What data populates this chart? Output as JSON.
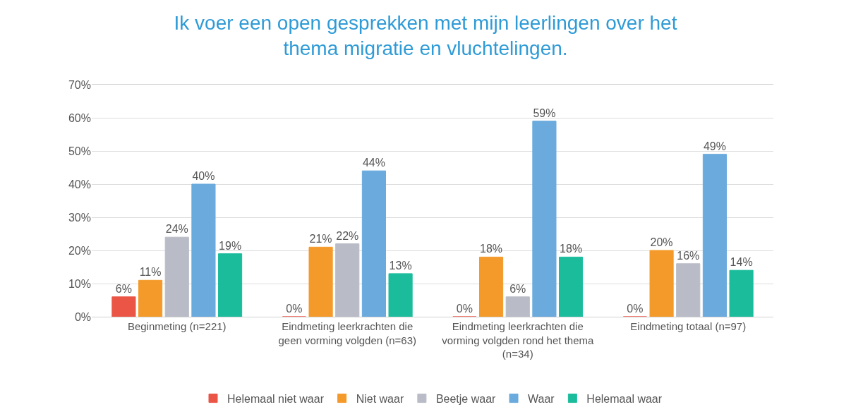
{
  "chart_data": {
    "type": "bar",
    "title": "Ik voer een open gesprekken met mijn leerlingen over het thema migratie en vluchtelingen.",
    "categories": [
      "Beginmeting (n=221)",
      "Eindmeting leerkrachten die geen vorming volgden (n=63)",
      "Eindmeting leerkrachten die vorming volgden rond het thema (n=34)",
      "Eindmeting totaal (n=97)"
    ],
    "series": [
      {
        "name": "Helemaal niet waar",
        "color": "#ea5545",
        "values": [
          6,
          0,
          0,
          0
        ],
        "value_labels": [
          "6%",
          "0%",
          "0%",
          "0%"
        ]
      },
      {
        "name": "Niet waar",
        "color": "#f49a2a",
        "values": [
          11,
          21,
          18,
          20
        ],
        "value_labels": [
          "11%",
          "21%",
          "18%",
          "20%"
        ]
      },
      {
        "name": "Beetje waar",
        "color": "#b9bcc6",
        "values": [
          24,
          22,
          6,
          16
        ],
        "value_labels": [
          "24%",
          "22%",
          "6%",
          "16%"
        ]
      },
      {
        "name": "Waar",
        "color": "#6aaadd",
        "values": [
          40,
          44,
          59,
          49
        ],
        "value_labels": [
          "40%",
          "44%",
          "59%",
          "49%"
        ]
      },
      {
        "name": "Helemaal waar",
        "color": "#1abc9c",
        "values": [
          19,
          13,
          18,
          14
        ],
        "value_labels": [
          "19%",
          "13%",
          "18%",
          "14%"
        ]
      }
    ],
    "ylim": [
      0,
      70
    ],
    "yticks": [
      {
        "value": 0,
        "label": "0%"
      },
      {
        "value": 10,
        "label": "10%"
      },
      {
        "value": 20,
        "label": "20%"
      },
      {
        "value": 30,
        "label": "30%"
      },
      {
        "value": 40,
        "label": "40%"
      },
      {
        "value": 50,
        "label": "50%"
      },
      {
        "value": 60,
        "label": "60%"
      },
      {
        "value": 70,
        "label": "70%"
      }
    ],
    "grid": "y",
    "legend": "bottom"
  }
}
